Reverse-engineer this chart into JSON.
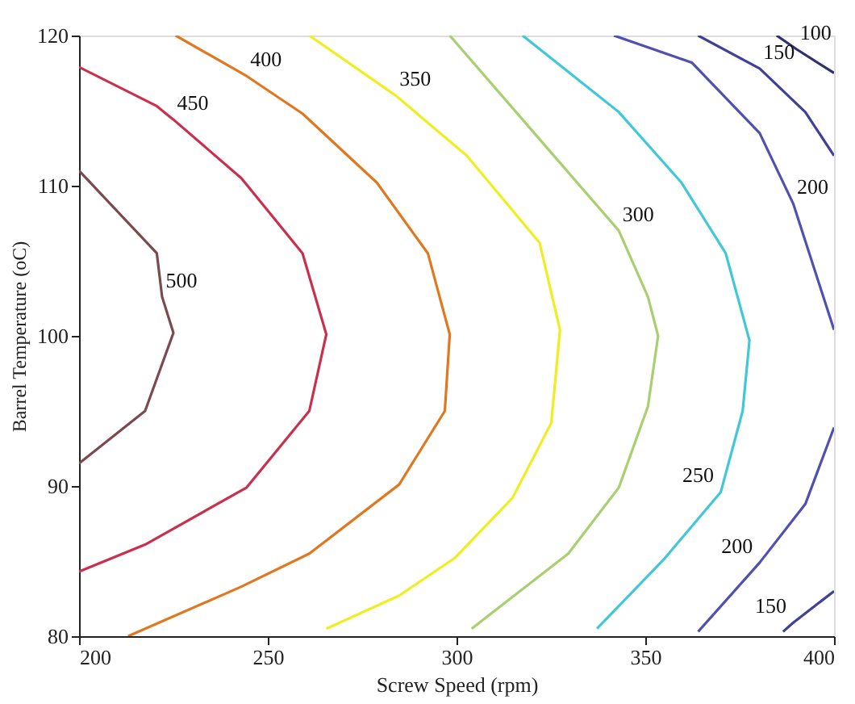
{
  "chart_data": {
    "type": "line",
    "xlabel": "Screw Speed (rpm)",
    "ylabel": "Barrel Temperature (oC)",
    "xlim": [
      200,
      400
    ],
    "xticks": [
      200,
      250,
      300,
      350,
      400
    ],
    "ylim": [
      80,
      120
    ],
    "yticks": [
      80,
      90,
      100,
      110,
      120
    ],
    "grid": false,
    "marker": "none",
    "line_style": "solid",
    "series": [
      {
        "color": "#7a4a50",
        "x": [
          200,
          220.6,
          222,
          225,
          217.5,
          200
        ],
        "values": [
          111,
          105.5,
          102.6,
          100.2,
          95,
          91.5
        ]
      },
      {
        "color": "#c8304e",
        "x": [
          200,
          220.6,
          225,
          243,
          259.2,
          265.5,
          261,
          244.4,
          217.5,
          200
        ],
        "values": [
          117.9,
          115.3,
          114.4,
          110.5,
          105.5,
          100.1,
          95,
          89.9,
          86.1,
          84.3
        ]
      },
      {
        "color": "#e07820",
        "x": [
          225.6,
          244.4,
          259.2,
          278.9,
          292.4,
          298.2,
          296.9,
          284.8,
          261,
          243,
          213
        ],
        "values": [
          120,
          117.3,
          114.8,
          110.2,
          105.5,
          100.1,
          95,
          90.1,
          85.5,
          83.3,
          80
        ]
      },
      {
        "color": "#eeee20",
        "x": [
          261,
          283.9,
          302.7,
          322,
          327.4,
          325.1,
          314.8,
          299.5,
          284.8,
          265.5
        ],
        "values": [
          120,
          116,
          112,
          106.2,
          100.4,
          94.2,
          89.2,
          85.2,
          82.7,
          80.5
        ]
      },
      {
        "color": "#a8d070",
        "x": [
          298.2,
          320.6,
          343,
          350.7,
          353.4,
          350.7,
          343,
          329.6,
          304
        ],
        "values": [
          120,
          113.5,
          107,
          102.6,
          100,
          95.3,
          89.9,
          85.5,
          80.5
        ]
      },
      {
        "color": "#40c8d8",
        "x": [
          317.5,
          343,
          359.6,
          371.3,
          377.6,
          375.8,
          370,
          355.2,
          337.2
        ],
        "values": [
          120,
          114.9,
          110.2,
          105.5,
          99.7,
          95,
          89.6,
          85.2,
          80.5
        ]
      },
      {
        "color": "#5050b0",
        "x": [
          341.7,
          362.3,
          380.3,
          389.2,
          398.2,
          400
        ],
        "values": [
          120,
          118.2,
          113.5,
          108.8,
          101.8,
          100.4
        ]
      },
      {
        "color": "#5050b0",
        "x": [
          400,
          392.4,
          380.3,
          364
        ],
        "values": [
          93.9,
          88.8,
          84.9,
          80.3
        ]
      },
      {
        "color": "#404098",
        "x": [
          364,
          380.3,
          392.4,
          400
        ],
        "values": [
          120,
          117.8,
          114.9,
          112
        ]
      },
      {
        "color": "#404098",
        "x": [
          400,
          389.2,
          386.5
        ],
        "values": [
          83,
          80.9,
          80.3
        ]
      },
      {
        "color": "#303070",
        "x": [
          384.8,
          390,
          400
        ],
        "values": [
          120,
          119.1,
          117.5
        ]
      }
    ],
    "annotations": [
      {
        "text": "500",
        "x": 222,
        "y": 102.6
      },
      {
        "text": "450",
        "x": 225,
        "y": 114.4
      },
      {
        "text": "400",
        "x": 244.4,
        "y": 117.3
      },
      {
        "text": "350",
        "x": 283.9,
        "y": 116
      },
      {
        "text": "300",
        "x": 343,
        "y": 107
      },
      {
        "text": "250",
        "x": 370,
        "y": 89.6
      },
      {
        "text": "200",
        "x": 389.2,
        "y": 108.8
      },
      {
        "text": "200",
        "x": 380.3,
        "y": 84.9
      },
      {
        "text": "150",
        "x": 380.3,
        "y": 117.8
      },
      {
        "text": "150",
        "x": 389.2,
        "y": 80.9
      },
      {
        "text": "100",
        "x": 390,
        "y": 119.1
      }
    ]
  }
}
